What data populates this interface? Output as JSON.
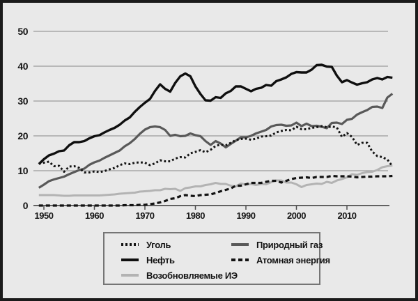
{
  "figure": {
    "background_color": "#e9e9e9",
    "frame_color": "#1b1b1b",
    "grid_color": "#9c9c9c",
    "axis_color": "#4f4f4f"
  },
  "axes": {
    "y_tick_labels": [
      "50",
      "40",
      "30",
      "20",
      "10",
      "0"
    ],
    "x_tick_labels": [
      "1950",
      "1960",
      "1970",
      "1980",
      "1990",
      "2000",
      "2010"
    ]
  },
  "chart_data": {
    "type": "line",
    "title": "",
    "xlabel": "",
    "ylabel": "",
    "xlim": [
      1949,
      2019
    ],
    "ylim": [
      0,
      50
    ],
    "y_ticks": [
      0,
      10,
      20,
      30,
      40,
      50
    ],
    "x_ticks": [
      1950,
      1960,
      1970,
      1980,
      1990,
      2000,
      2010
    ],
    "grid": true,
    "legend_position": "bottom",
    "paint_order": [
      2,
      3,
      1,
      4,
      0
    ],
    "x": [
      1949,
      1950,
      1951,
      1952,
      1953,
      1954,
      1955,
      1956,
      1957,
      1958,
      1959,
      1960,
      1961,
      1962,
      1963,
      1964,
      1965,
      1966,
      1967,
      1968,
      1969,
      1970,
      1971,
      1972,
      1973,
      1974,
      1975,
      1976,
      1977,
      1978,
      1979,
      1980,
      1981,
      1982,
      1983,
      1984,
      1985,
      1986,
      1987,
      1988,
      1989,
      1990,
      1991,
      1992,
      1993,
      1994,
      1995,
      1996,
      1997,
      1998,
      1999,
      2000,
      2001,
      2002,
      2003,
      2004,
      2005,
      2006,
      2007,
      2008,
      2009,
      2010,
      2011,
      2012,
      2013,
      2014,
      2015,
      2016,
      2017,
      2018,
      2019
    ],
    "series": [
      {
        "name": "Уголь",
        "style": "dotted",
        "color": "#131313",
        "width": 3,
        "values": [
          12.0,
          12.3,
          12.6,
          11.3,
          11.4,
          9.7,
          11.2,
          11.3,
          10.8,
          9.5,
          9.5,
          9.8,
          9.6,
          9.9,
          10.4,
          10.8,
          11.6,
          12.1,
          11.9,
          12.3,
          12.4,
          12.3,
          11.6,
          12.1,
          13.0,
          12.7,
          12.7,
          13.5,
          13.9,
          13.8,
          15.0,
          15.4,
          15.9,
          15.3,
          16.0,
          17.1,
          17.5,
          17.3,
          18.0,
          18.8,
          19.1,
          19.2,
          18.9,
          19.2,
          19.8,
          19.9,
          20.1,
          21.0,
          21.4,
          21.7,
          21.6,
          22.6,
          21.9,
          21.9,
          22.3,
          22.5,
          22.8,
          22.5,
          22.7,
          22.4,
          19.7,
          20.8,
          19.7,
          17.4,
          18.0,
          18.0,
          15.5,
          14.2,
          13.9,
          13.2,
          11.3
        ]
      },
      {
        "name": "Нефть",
        "style": "solid",
        "color": "#0f0f0f",
        "width": 3.4,
        "values": [
          11.9,
          13.3,
          14.4,
          14.9,
          15.6,
          15.8,
          17.3,
          18.2,
          18.2,
          18.5,
          19.3,
          19.9,
          20.2,
          21.0,
          21.7,
          22.3,
          23.2,
          24.4,
          25.3,
          26.9,
          28.3,
          29.5,
          30.6,
          32.9,
          34.8,
          33.5,
          32.7,
          35.2,
          37.1,
          37.9,
          37.1,
          34.2,
          32.0,
          30.2,
          30.1,
          31.1,
          30.9,
          32.2,
          32.9,
          34.2,
          34.2,
          33.5,
          32.8,
          33.5,
          33.8,
          34.6,
          34.4,
          35.7,
          36.2,
          36.8,
          37.8,
          38.3,
          38.2,
          38.2,
          39.0,
          40.3,
          40.4,
          39.9,
          39.8,
          37.3,
          35.4,
          36.0,
          35.3,
          34.7,
          35.1,
          35.4,
          36.2,
          36.6,
          36.2,
          36.9,
          36.7
        ]
      },
      {
        "name": "Возобновляемые ИЭ",
        "style": "solid",
        "color": "#b3b3b3",
        "width": 3,
        "values": [
          3.0,
          3.0,
          3.0,
          3.0,
          2.9,
          2.8,
          2.8,
          2.9,
          2.9,
          2.9,
          2.9,
          2.9,
          2.9,
          3.0,
          3.1,
          3.2,
          3.4,
          3.5,
          3.6,
          3.7,
          4.0,
          4.1,
          4.2,
          4.4,
          4.4,
          4.8,
          4.7,
          4.8,
          4.2,
          5.0,
          5.2,
          5.5,
          5.5,
          5.9,
          6.1,
          6.5,
          6.2,
          6.2,
          5.7,
          5.5,
          6.3,
          6.0,
          6.2,
          5.9,
          6.2,
          6.1,
          6.7,
          7.2,
          7.2,
          6.6,
          6.6,
          6.1,
          5.3,
          5.9,
          6.1,
          6.3,
          6.2,
          6.8,
          6.5,
          7.2,
          7.6,
          8.1,
          9.0,
          8.8,
          9.3,
          9.6,
          9.7,
          10.2,
          11.0,
          11.3,
          11.5
        ]
      },
      {
        "name": "Природный газ",
        "style": "solid",
        "color": "#595959",
        "width": 3.2,
        "values": [
          5.1,
          6.0,
          7.0,
          7.5,
          7.9,
          8.3,
          9.0,
          9.6,
          10.2,
          10.6,
          11.7,
          12.4,
          12.9,
          13.7,
          14.4,
          15.1,
          15.8,
          17.0,
          17.9,
          19.1,
          20.6,
          21.8,
          22.5,
          22.7,
          22.5,
          21.7,
          20.0,
          20.3,
          19.9,
          20.0,
          20.7,
          20.2,
          19.9,
          18.5,
          17.4,
          18.5,
          17.8,
          16.7,
          17.7,
          18.6,
          19.6,
          19.6,
          20.0,
          20.7,
          21.2,
          21.7,
          22.7,
          23.1,
          23.2,
          22.9,
          23.0,
          23.8,
          22.8,
          23.5,
          22.8,
          22.9,
          22.6,
          22.2,
          23.7,
          23.8,
          23.4,
          24.6,
          24.9,
          26.1,
          26.8,
          27.4,
          28.3,
          28.4,
          28.0,
          31.0,
          32.1
        ]
      },
      {
        "name": "Атомная энергия",
        "style": "dashed",
        "color": "#131313",
        "width": 3.2,
        "values": [
          0,
          0,
          0,
          0,
          0,
          0,
          0,
          0,
          0,
          0,
          0,
          0,
          0,
          0,
          0,
          0,
          0,
          0.1,
          0.1,
          0.1,
          0.2,
          0.2,
          0.4,
          0.6,
          0.9,
          1.3,
          1.9,
          2.1,
          2.7,
          3.0,
          2.8,
          2.7,
          3.0,
          3.1,
          3.2,
          3.6,
          4.1,
          4.5,
          4.9,
          5.7,
          5.7,
          6.1,
          6.5,
          6.5,
          6.5,
          6.8,
          7.1,
          7.1,
          6.6,
          7.1,
          7.6,
          7.9,
          8.0,
          8.1,
          7.9,
          8.2,
          8.2,
          8.2,
          8.5,
          8.4,
          8.4,
          8.4,
          8.3,
          8.1,
          8.2,
          8.3,
          8.3,
          8.4,
          8.4,
          8.4,
          8.5
        ]
      }
    ]
  }
}
